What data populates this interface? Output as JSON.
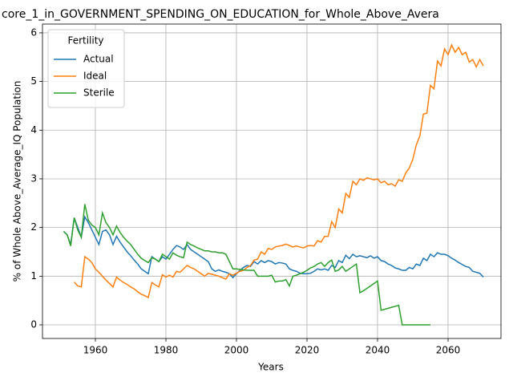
{
  "chart_data": {
    "type": "line",
    "title": "core_1_in_GOVERNMENT_SPENDING_ON_EDUCATION_for_Whole_Above_Avera",
    "xlabel": "Years",
    "ylabel": "% of Whole Above_Average_IQ Population",
    "legend_title": "Fertility",
    "legend": "upper left",
    "grid": true,
    "xlim": [
      1945,
      2075
    ],
    "ylim": [
      -0.28,
      6.18
    ],
    "xticks": [
      1960,
      1980,
      2000,
      2020,
      2040,
      2060
    ],
    "yticks": [
      0,
      1,
      2,
      3,
      4,
      5,
      6
    ],
    "x": [
      1951,
      1952,
      1953,
      1954,
      1955,
      1956,
      1957,
      1958,
      1959,
      1960,
      1961,
      1962,
      1963,
      1964,
      1965,
      1966,
      1967,
      1968,
      1969,
      1970,
      1971,
      1972,
      1973,
      1974,
      1975,
      1976,
      1977,
      1978,
      1979,
      1980,
      1981,
      1982,
      1983,
      1984,
      1985,
      1986,
      1987,
      1988,
      1989,
      1990,
      1991,
      1992,
      1993,
      1994,
      1995,
      1996,
      1997,
      1998,
      1999,
      2000,
      2001,
      2002,
      2003,
      2004,
      2005,
      2006,
      2007,
      2008,
      2009,
      2010,
      2011,
      2012,
      2013,
      2014,
      2015,
      2016,
      2017,
      2018,
      2019,
      2020,
      2021,
      2022,
      2023,
      2024,
      2025,
      2026,
      2027,
      2028,
      2029,
      2030,
      2031,
      2032,
      2033,
      2034,
      2035,
      2036,
      2037,
      2038,
      2039,
      2040,
      2041,
      2042,
      2043,
      2044,
      2045,
      2046,
      2047,
      2048,
      2049,
      2050,
      2051,
      2052,
      2053,
      2054,
      2055,
      2056,
      2057,
      2058,
      2059,
      2060,
      2061,
      2062,
      2063,
      2064,
      2065,
      2066,
      2067,
      2068,
      2069,
      2070
    ],
    "series": [
      {
        "name": "Actual",
        "color": "#1f77b4",
        "values": [
          1.92,
          1.85,
          1.65,
          2.2,
          2.0,
          1.8,
          2.22,
          2.1,
          1.95,
          1.8,
          1.65,
          1.92,
          1.95,
          1.85,
          1.65,
          1.82,
          1.7,
          1.6,
          1.5,
          1.42,
          1.33,
          1.25,
          1.15,
          1.1,
          1.05,
          1.4,
          1.35,
          1.3,
          1.4,
          1.35,
          1.45,
          1.55,
          1.63,
          1.6,
          1.55,
          1.65,
          1.55,
          1.5,
          1.45,
          1.4,
          1.35,
          1.3,
          1.15,
          1.1,
          1.13,
          1.1,
          1.08,
          1.05,
          0.97,
          1.05,
          1.12,
          1.18,
          1.22,
          1.2,
          1.3,
          1.25,
          1.32,
          1.28,
          1.32,
          1.3,
          1.25,
          1.28,
          1.27,
          1.25,
          1.15,
          1.12,
          1.1,
          1.06,
          1.05,
          1.05,
          1.06,
          1.1,
          1.15,
          1.13,
          1.15,
          1.12,
          1.22,
          1.18,
          1.32,
          1.28,
          1.43,
          1.36,
          1.45,
          1.4,
          1.42,
          1.4,
          1.38,
          1.42,
          1.37,
          1.4,
          1.32,
          1.3,
          1.25,
          1.22,
          1.17,
          1.15,
          1.12,
          1.12,
          1.18,
          1.15,
          1.25,
          1.22,
          1.37,
          1.32,
          1.45,
          1.4,
          1.48,
          1.45,
          1.45,
          1.42,
          1.37,
          1.33,
          1.28,
          1.24,
          1.2,
          1.18,
          1.1,
          1.08,
          1.06,
          0.98
        ]
      },
      {
        "name": "Ideal",
        "color": "#ff7f0e",
        "values": [
          null,
          null,
          null,
          0.88,
          0.8,
          0.78,
          1.4,
          1.35,
          1.28,
          1.15,
          1.08,
          1.0,
          0.92,
          0.85,
          0.78,
          0.98,
          0.92,
          0.87,
          0.83,
          0.78,
          0.74,
          0.68,
          0.63,
          0.6,
          0.56,
          0.87,
          0.82,
          0.78,
          1.03,
          0.98,
          1.02,
          0.98,
          1.1,
          1.08,
          1.15,
          1.22,
          1.18,
          1.15,
          1.1,
          1.05,
          1.0,
          1.06,
          1.04,
          1.02,
          1.0,
          0.97,
          0.94,
          1.05,
          1.02,
          1.06,
          1.1,
          1.12,
          1.18,
          1.22,
          1.33,
          1.35,
          1.5,
          1.45,
          1.57,
          1.55,
          1.6,
          1.62,
          1.63,
          1.66,
          1.63,
          1.6,
          1.62,
          1.6,
          1.58,
          1.62,
          1.63,
          1.62,
          1.73,
          1.7,
          1.82,
          1.82,
          2.12,
          2.0,
          2.38,
          2.3,
          2.7,
          2.62,
          2.95,
          2.88,
          3.0,
          2.97,
          3.02,
          3.0,
          2.98,
          3.0,
          2.92,
          2.95,
          2.88,
          2.9,
          2.85,
          2.98,
          2.95,
          3.12,
          3.22,
          3.4,
          3.7,
          3.88,
          4.33,
          4.35,
          4.92,
          4.85,
          5.42,
          5.32,
          5.67,
          5.55,
          5.75,
          5.6,
          5.7,
          5.55,
          5.6,
          5.4,
          5.45,
          5.3,
          5.45,
          5.32
        ]
      },
      {
        "name": "Sterile",
        "color": "#2ca02c",
        "values": [
          1.92,
          1.85,
          1.62,
          2.2,
          1.95,
          1.8,
          2.48,
          2.15,
          2.05,
          2.0,
          1.85,
          2.3,
          2.1,
          2.0,
          1.85,
          2.03,
          1.9,
          1.8,
          1.72,
          1.65,
          1.55,
          1.45,
          1.37,
          1.32,
          1.28,
          1.38,
          1.35,
          1.3,
          1.45,
          1.4,
          1.35,
          1.48,
          1.43,
          1.4,
          1.38,
          1.7,
          1.65,
          1.62,
          1.58,
          1.55,
          1.52,
          1.52,
          1.5,
          1.5,
          1.48,
          1.48,
          1.45,
          1.3,
          1.15,
          1.15,
          1.14,
          1.13,
          1.12,
          1.12,
          1.12,
          1.0,
          1.0,
          1.0,
          1.0,
          1.02,
          0.88,
          0.9,
          0.9,
          0.93,
          0.8,
          1.0,
          1.02,
          1.05,
          1.08,
          1.12,
          1.17,
          1.2,
          1.25,
          1.28,
          1.2,
          1.28,
          1.33,
          1.1,
          1.13,
          1.2,
          1.1,
          1.15,
          1.2,
          1.25,
          0.66,
          0.7,
          0.75,
          0.8,
          0.85,
          0.9,
          0.3,
          0.32,
          0.34,
          0.36,
          0.38,
          0.4,
          0,
          0,
          0,
          0,
          0,
          0,
          0,
          0,
          0,
          null,
          null,
          null,
          null,
          null,
          null,
          null,
          null,
          null,
          null,
          null,
          null,
          null,
          null,
          null
        ]
      }
    ]
  }
}
